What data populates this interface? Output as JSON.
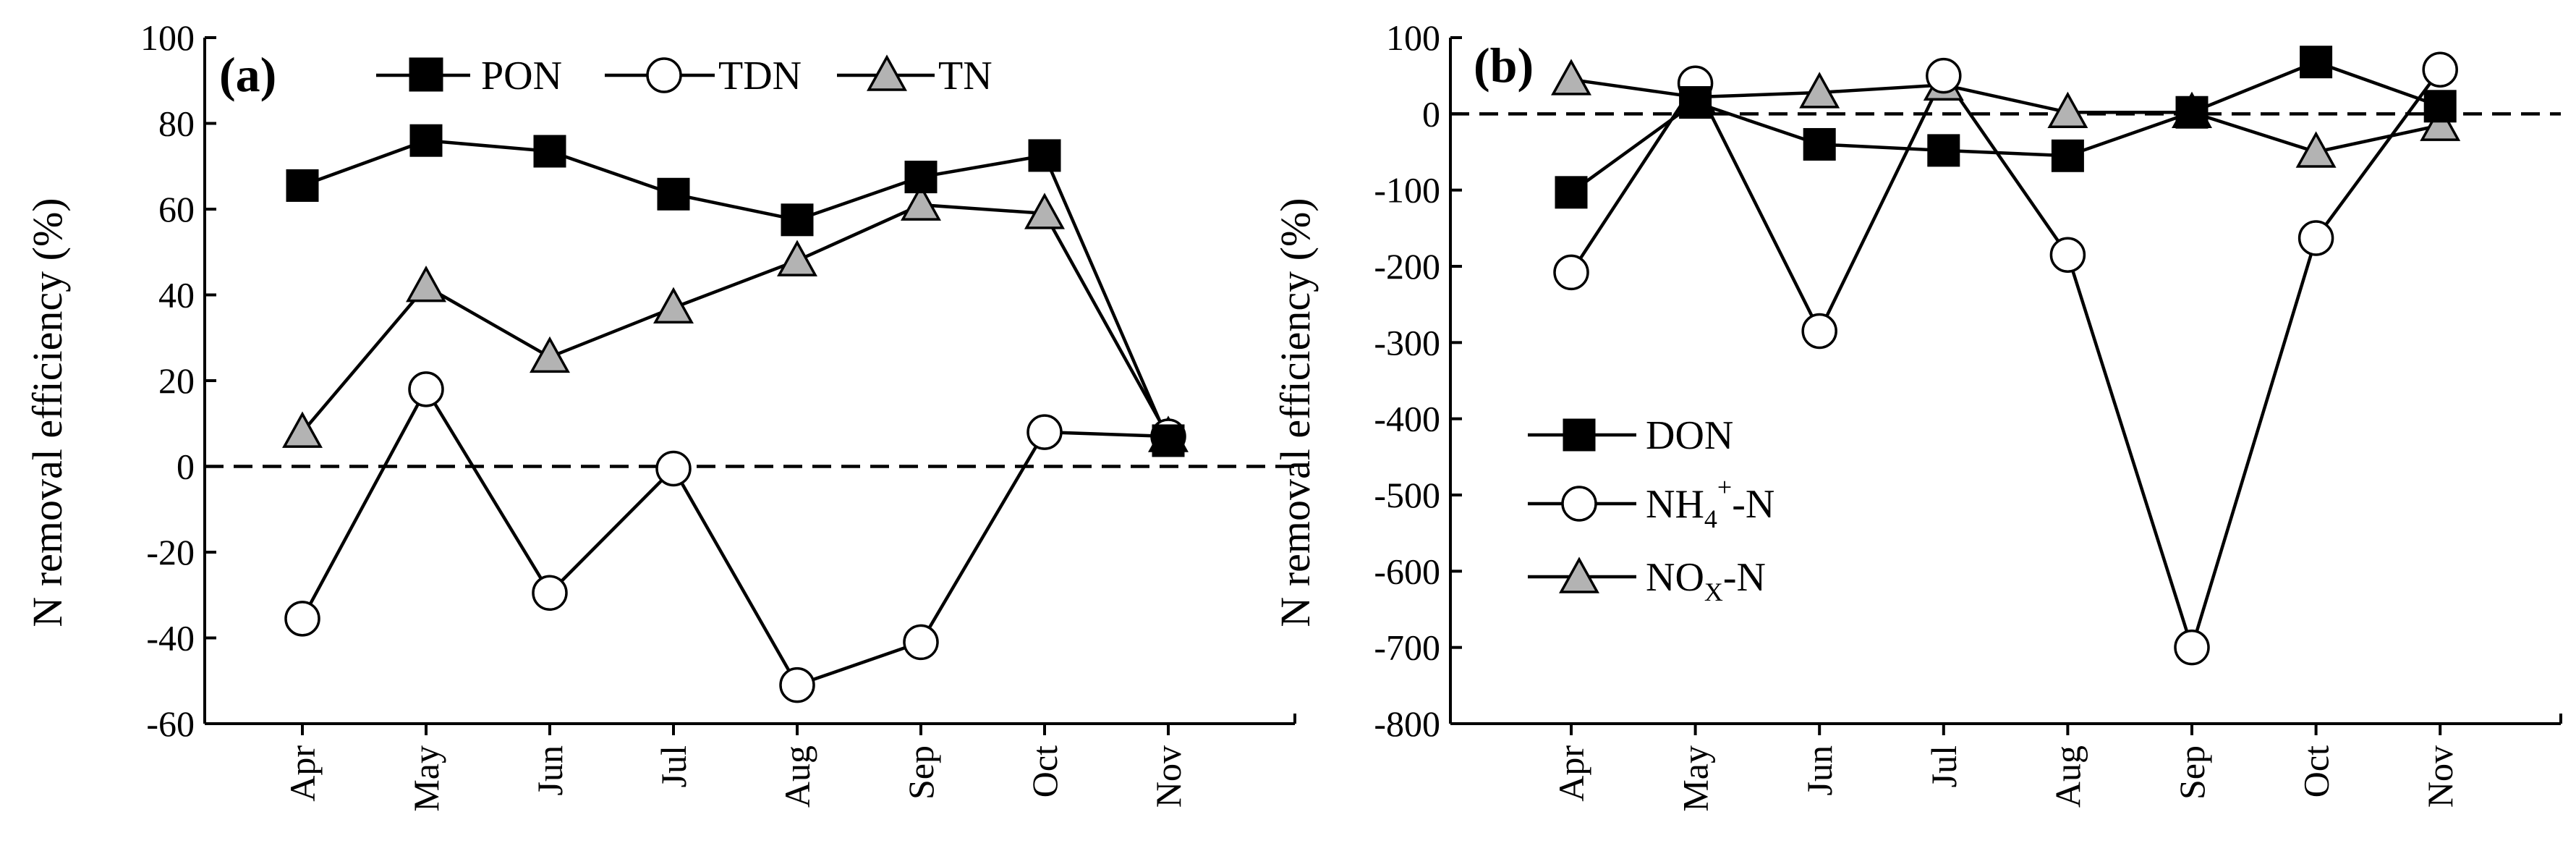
{
  "colors": {
    "axis": "#000000",
    "line": "#000000",
    "square_fill": "#000000",
    "circle_fill": "#ffffff",
    "triangle_fill": "#b3b3b3"
  },
  "chart_data": [
    {
      "type": "line",
      "panel_label": "(a)",
      "title": "",
      "xlabel": "",
      "ylabel": "N removal efficiency (%)",
      "categories": [
        "Apr",
        "May",
        "Jun",
        "Jul",
        "Aug",
        "Sep",
        "Oct",
        "Nov"
      ],
      "ylim": [
        -60,
        100
      ],
      "yticks": [
        -60,
        -40,
        -20,
        0,
        20,
        40,
        60,
        80,
        100
      ],
      "reference_line": 0,
      "legend_position": "top",
      "series": [
        {
          "name": "PON",
          "marker": "square",
          "values": [
            65.5,
            76,
            73.5,
            63.5,
            57.5,
            67.5,
            72.5,
            6
          ]
        },
        {
          "name": "TDN",
          "marker": "circle",
          "values": [
            -35.5,
            18,
            -29.5,
            -0.5,
            -51,
            -41,
            8,
            7
          ]
        },
        {
          "name": "TN",
          "marker": "triangle",
          "values": [
            8,
            42,
            25.5,
            37,
            48,
            61,
            59,
            7
          ]
        }
      ]
    },
    {
      "type": "line",
      "panel_label": "(b)",
      "title": "",
      "xlabel": "",
      "ylabel": "N removal efficiency (%)",
      "categories": [
        "Apr",
        "May",
        "Jun",
        "Jul",
        "Aug",
        "Sep",
        "Oct",
        "Nov"
      ],
      "ylim": [
        -800,
        100
      ],
      "yticks": [
        -800,
        -700,
        -600,
        -500,
        -400,
        -300,
        -200,
        -100,
        0,
        100
      ],
      "reference_line": 0,
      "legend_position": "left-middle",
      "series": [
        {
          "name": "DON",
          "marker": "square",
          "values": [
            -103,
            15,
            -40,
            -48,
            -55,
            2,
            68,
            10
          ]
        },
        {
          "name": "NH4+-N",
          "name_parts": [
            "NH",
            "4",
            "+",
            "-N"
          ],
          "marker": "circle",
          "values": [
            -208,
            40,
            -285,
            50,
            -185,
            -700,
            -163,
            58
          ]
        },
        {
          "name": "NOx-N",
          "name_parts": [
            "NO",
            "X",
            "-N"
          ],
          "marker": "triangle",
          "values": [
            45,
            22,
            28,
            38,
            2,
            2,
            -50,
            -15
          ]
        }
      ]
    }
  ]
}
